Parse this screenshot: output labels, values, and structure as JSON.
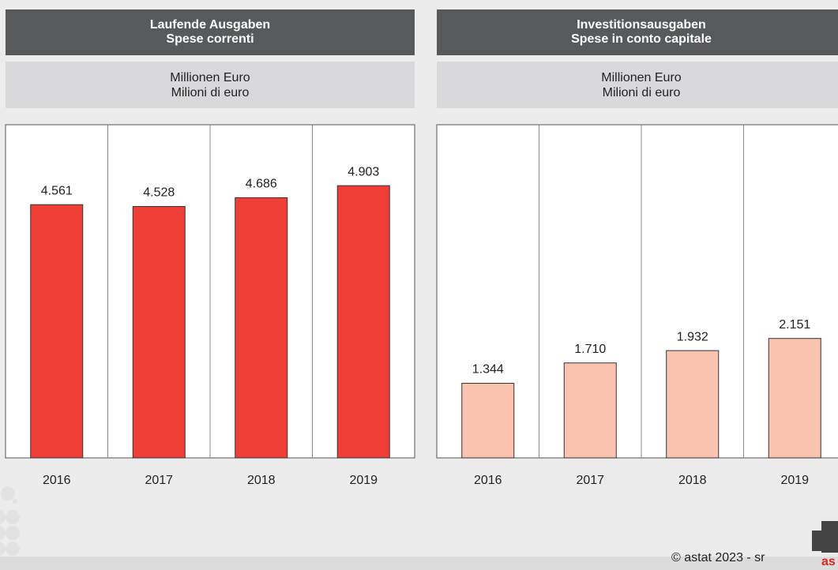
{
  "chart_data": [
    {
      "type": "bar",
      "title": [
        "Laufende Ausgaben",
        "Spese correnti"
      ],
      "unit_label": [
        "Millionen Euro",
        "Milioni di euro"
      ],
      "categories": [
        "2016",
        "2017",
        "2018",
        "2019"
      ],
      "values": [
        4561,
        4528,
        4686,
        4903
      ],
      "value_labels": [
        "4.561",
        "4.528",
        "4.686",
        "4.903"
      ],
      "color": "#ef3e36",
      "ylim": [
        0,
        6000
      ]
    },
    {
      "type": "bar",
      "title": [
        "Investitionsausgaben",
        "Spese in conto capitale"
      ],
      "unit_label": [
        "Millionen Euro",
        "Milioni di euro"
      ],
      "categories": [
        "2016",
        "2017",
        "2018",
        "2019"
      ],
      "values": [
        1344,
        1710,
        1932,
        2151
      ],
      "value_labels": [
        "1.344",
        "1.710",
        "1.932",
        "2.151"
      ],
      "color": "#f9c3b0",
      "ylim": [
        0,
        6000
      ]
    }
  ],
  "footer": "© astat 2023 - sr",
  "logo": "as"
}
